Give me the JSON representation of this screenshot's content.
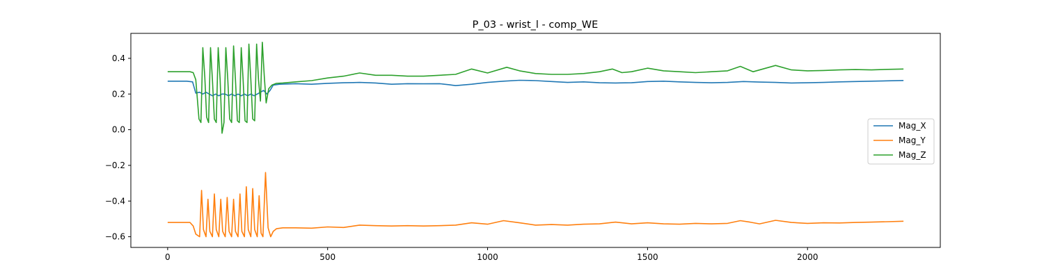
{
  "chart_data": {
    "type": "line",
    "title": "P_03 - wrist_l - comp_WE",
    "xlabel": "",
    "ylabel": "",
    "xlim": [
      -115,
      2415
    ],
    "ylim": [
      -0.66,
      0.54
    ],
    "x_ticks": [
      0,
      500,
      1000,
      1500,
      2000
    ],
    "y_ticks": [
      -0.6,
      -0.4,
      -0.2,
      0.0,
      0.2,
      0.4
    ],
    "x_tick_labels": [
      "0",
      "500",
      "1000",
      "1500",
      "2000"
    ],
    "y_tick_labels": [
      "−0.6",
      "−0.4",
      "−0.2",
      "0.0",
      "0.2",
      "0.4"
    ],
    "grid": false,
    "legend_position": "center-right",
    "series": [
      {
        "name": "Mag_X",
        "color": "#1f77b4",
        "points": [
          [
            0,
            0.272
          ],
          [
            60,
            0.272
          ],
          [
            78,
            0.268
          ],
          [
            88,
            0.205
          ],
          [
            100,
            0.21
          ],
          [
            110,
            0.2
          ],
          [
            120,
            0.21
          ],
          [
            130,
            0.2
          ],
          [
            140,
            0.19
          ],
          [
            150,
            0.2
          ],
          [
            160,
            0.19
          ],
          [
            170,
            0.2
          ],
          [
            180,
            0.2
          ],
          [
            190,
            0.19
          ],
          [
            200,
            0.2
          ],
          [
            210,
            0.19
          ],
          [
            220,
            0.2
          ],
          [
            230,
            0.19
          ],
          [
            240,
            0.2
          ],
          [
            250,
            0.19
          ],
          [
            260,
            0.2
          ],
          [
            270,
            0.19
          ],
          [
            280,
            0.2
          ],
          [
            290,
            0.21
          ],
          [
            300,
            0.22
          ],
          [
            310,
            0.2
          ],
          [
            320,
            0.22
          ],
          [
            330,
            0.25
          ],
          [
            350,
            0.255
          ],
          [
            400,
            0.258
          ],
          [
            450,
            0.255
          ],
          [
            500,
            0.26
          ],
          [
            550,
            0.263
          ],
          [
            600,
            0.265
          ],
          [
            650,
            0.262
          ],
          [
            700,
            0.255
          ],
          [
            750,
            0.258
          ],
          [
            800,
            0.257
          ],
          [
            850,
            0.258
          ],
          [
            880,
            0.252
          ],
          [
            900,
            0.247
          ],
          [
            950,
            0.255
          ],
          [
            1000,
            0.265
          ],
          [
            1050,
            0.272
          ],
          [
            1100,
            0.277
          ],
          [
            1150,
            0.275
          ],
          [
            1200,
            0.27
          ],
          [
            1250,
            0.265
          ],
          [
            1300,
            0.268
          ],
          [
            1350,
            0.263
          ],
          [
            1400,
            0.262
          ],
          [
            1450,
            0.263
          ],
          [
            1500,
            0.27
          ],
          [
            1550,
            0.272
          ],
          [
            1600,
            0.268
          ],
          [
            1650,
            0.265
          ],
          [
            1700,
            0.263
          ],
          [
            1750,
            0.265
          ],
          [
            1800,
            0.27
          ],
          [
            1850,
            0.267
          ],
          [
            1900,
            0.265
          ],
          [
            1950,
            0.262
          ],
          [
            2000,
            0.263
          ],
          [
            2050,
            0.265
          ],
          [
            2100,
            0.268
          ],
          [
            2150,
            0.27
          ],
          [
            2200,
            0.272
          ],
          [
            2250,
            0.274
          ],
          [
            2300,
            0.276
          ]
        ]
      },
      {
        "name": "Mag_Y",
        "color": "#ff7f0e",
        "points": [
          [
            0,
            -0.52
          ],
          [
            70,
            -0.52
          ],
          [
            80,
            -0.54
          ],
          [
            88,
            -0.585
          ],
          [
            100,
            -0.6
          ],
          [
            106,
            -0.34
          ],
          [
            112,
            -0.56
          ],
          [
            120,
            -0.6
          ],
          [
            126,
            -0.39
          ],
          [
            132,
            -0.57
          ],
          [
            140,
            -0.6
          ],
          [
            146,
            -0.36
          ],
          [
            152,
            -0.56
          ],
          [
            160,
            -0.6
          ],
          [
            166,
            -0.39
          ],
          [
            172,
            -0.57
          ],
          [
            180,
            -0.6
          ],
          [
            186,
            -0.38
          ],
          [
            192,
            -0.57
          ],
          [
            200,
            -0.6
          ],
          [
            206,
            -0.39
          ],
          [
            212,
            -0.57
          ],
          [
            220,
            -0.6
          ],
          [
            226,
            -0.36
          ],
          [
            232,
            -0.57
          ],
          [
            240,
            -0.6
          ],
          [
            246,
            -0.32
          ],
          [
            252,
            -0.56
          ],
          [
            260,
            -0.6
          ],
          [
            266,
            -0.33
          ],
          [
            272,
            -0.56
          ],
          [
            280,
            -0.6
          ],
          [
            286,
            -0.37
          ],
          [
            292,
            -0.58
          ],
          [
            298,
            -0.6
          ],
          [
            306,
            -0.24
          ],
          [
            314,
            -0.55
          ],
          [
            322,
            -0.6
          ],
          [
            330,
            -0.57
          ],
          [
            340,
            -0.555
          ],
          [
            360,
            -0.55
          ],
          [
            400,
            -0.55
          ],
          [
            450,
            -0.552
          ],
          [
            500,
            -0.545
          ],
          [
            550,
            -0.548
          ],
          [
            600,
            -0.535
          ],
          [
            650,
            -0.538
          ],
          [
            700,
            -0.54
          ],
          [
            750,
            -0.538
          ],
          [
            800,
            -0.54
          ],
          [
            850,
            -0.538
          ],
          [
            900,
            -0.535
          ],
          [
            950,
            -0.522
          ],
          [
            1000,
            -0.53
          ],
          [
            1050,
            -0.51
          ],
          [
            1100,
            -0.522
          ],
          [
            1150,
            -0.535
          ],
          [
            1200,
            -0.532
          ],
          [
            1250,
            -0.535
          ],
          [
            1300,
            -0.53
          ],
          [
            1350,
            -0.528
          ],
          [
            1400,
            -0.518
          ],
          [
            1450,
            -0.528
          ],
          [
            1500,
            -0.522
          ],
          [
            1550,
            -0.528
          ],
          [
            1600,
            -0.53
          ],
          [
            1650,
            -0.525
          ],
          [
            1700,
            -0.528
          ],
          [
            1750,
            -0.525
          ],
          [
            1790,
            -0.51
          ],
          [
            1820,
            -0.518
          ],
          [
            1850,
            -0.528
          ],
          [
            1900,
            -0.508
          ],
          [
            1950,
            -0.52
          ],
          [
            2000,
            -0.525
          ],
          [
            2050,
            -0.522
          ],
          [
            2100,
            -0.523
          ],
          [
            2150,
            -0.52
          ],
          [
            2200,
            -0.518
          ],
          [
            2250,
            -0.516
          ],
          [
            2300,
            -0.513
          ]
        ]
      },
      {
        "name": "Mag_Z",
        "color": "#2ca02c",
        "points": [
          [
            0,
            0.325
          ],
          [
            70,
            0.325
          ],
          [
            80,
            0.32
          ],
          [
            88,
            0.28
          ],
          [
            98,
            0.06
          ],
          [
            104,
            0.04
          ],
          [
            110,
            0.46
          ],
          [
            116,
            0.3
          ],
          [
            122,
            0.07
          ],
          [
            128,
            0.04
          ],
          [
            134,
            0.46
          ],
          [
            140,
            0.28
          ],
          [
            146,
            0.06
          ],
          [
            152,
            0.04
          ],
          [
            158,
            0.46
          ],
          [
            164,
            0.28
          ],
          [
            170,
            -0.02
          ],
          [
            176,
            0.04
          ],
          [
            182,
            0.46
          ],
          [
            188,
            0.28
          ],
          [
            194,
            0.06
          ],
          [
            200,
            0.04
          ],
          [
            206,
            0.47
          ],
          [
            212,
            0.28
          ],
          [
            218,
            0.05
          ],
          [
            224,
            0.04
          ],
          [
            230,
            0.46
          ],
          [
            236,
            0.28
          ],
          [
            242,
            0.05
          ],
          [
            248,
            0.04
          ],
          [
            254,
            0.48
          ],
          [
            260,
            0.28
          ],
          [
            266,
            0.06
          ],
          [
            272,
            0.05
          ],
          [
            278,
            0.48
          ],
          [
            284,
            0.28
          ],
          [
            290,
            0.16
          ],
          [
            296,
            0.49
          ],
          [
            302,
            0.3
          ],
          [
            308,
            0.15
          ],
          [
            316,
            0.23
          ],
          [
            326,
            0.25
          ],
          [
            340,
            0.26
          ],
          [
            360,
            0.262
          ],
          [
            400,
            0.268
          ],
          [
            450,
            0.275
          ],
          [
            500,
            0.29
          ],
          [
            550,
            0.3
          ],
          [
            600,
            0.318
          ],
          [
            650,
            0.305
          ],
          [
            700,
            0.305
          ],
          [
            750,
            0.3
          ],
          [
            800,
            0.3
          ],
          [
            850,
            0.305
          ],
          [
            900,
            0.31
          ],
          [
            950,
            0.34
          ],
          [
            1000,
            0.318
          ],
          [
            1060,
            0.35
          ],
          [
            1100,
            0.33
          ],
          [
            1150,
            0.315
          ],
          [
            1200,
            0.31
          ],
          [
            1250,
            0.31
          ],
          [
            1300,
            0.315
          ],
          [
            1350,
            0.325
          ],
          [
            1390,
            0.34
          ],
          [
            1420,
            0.32
          ],
          [
            1450,
            0.325
          ],
          [
            1500,
            0.345
          ],
          [
            1550,
            0.33
          ],
          [
            1600,
            0.325
          ],
          [
            1650,
            0.32
          ],
          [
            1700,
            0.325
          ],
          [
            1750,
            0.33
          ],
          [
            1790,
            0.355
          ],
          [
            1830,
            0.325
          ],
          [
            1900,
            0.36
          ],
          [
            1950,
            0.335
          ],
          [
            2000,
            0.33
          ],
          [
            2050,
            0.332
          ],
          [
            2100,
            0.335
          ],
          [
            2150,
            0.337
          ],
          [
            2200,
            0.335
          ],
          [
            2250,
            0.338
          ],
          [
            2300,
            0.34
          ]
        ]
      }
    ]
  }
}
